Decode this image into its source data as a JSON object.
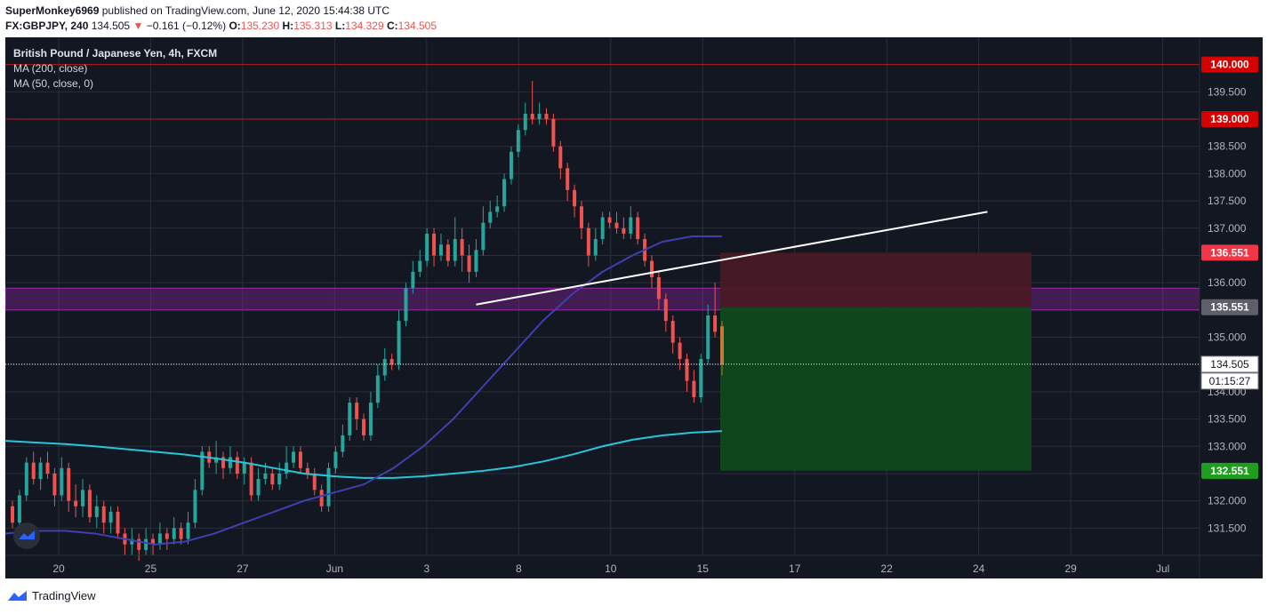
{
  "header": {
    "author": "SuperMonkey6969",
    "published": " published on TradingView.com, June 12, 2020 15:44:38 UTC",
    "symbol": "FX:GBPJPY, 240",
    "last": "134.505",
    "change_arrow": "▼",
    "change": "−0.161 (−0.12%)",
    "o_label": "O:",
    "o": "135.230",
    "h_label": "H:",
    "h": "135.313",
    "l_label": "L:",
    "l": "134.329",
    "c_label": "C:",
    "c": "134.505"
  },
  "legend": {
    "title": "British Pound / Japanese Yen, 4h, FXCM",
    "ma200": "MA (200, close)",
    "ma50": "MA (50, close, 0)"
  },
  "footer": {
    "brand": "TradingView"
  },
  "colors": {
    "background": "#131722",
    "grid": "#2a2e39",
    "up": "#26a69a",
    "down": "#ef5350",
    "ma200": "#26c6da",
    "ma50": "#3f3fae",
    "trendline": "#ffffff",
    "zone": "#9c27b0",
    "stop_zone": "#4a1a24",
    "target_zone": "#0e4a1a",
    "level_line": "#b71c1c"
  },
  "chart_data": {
    "type": "candlestick",
    "x_ticks": [
      "20",
      "25",
      "27",
      "Jun",
      "3",
      "8",
      "10",
      "15",
      "17",
      "22",
      "24",
      "29",
      "Jul"
    ],
    "y_ticks": [
      "131.500",
      "132.000",
      "132.500",
      "133.000",
      "133.500",
      "134.000",
      "134.500",
      "135.000",
      "135.500",
      "136.000",
      "136.500",
      "137.000",
      "137.500",
      "138.000",
      "138.500",
      "139.000",
      "139.500"
    ],
    "y_range": [
      131.0,
      140.5
    ],
    "levels": [
      {
        "label": "140.000",
        "value": 140.0,
        "color": "#d50000"
      },
      {
        "label": "139.000",
        "value": 139.0,
        "color": "#d50000"
      },
      {
        "label": "136.551",
        "value": 136.551,
        "color": "#f23645"
      },
      {
        "label": "135.551",
        "value": 135.551,
        "color": "#5d606b"
      },
      {
        "label": "132.551",
        "value": 132.551,
        "color": "#1e9e1e"
      }
    ],
    "current_price": "134.505",
    "countdown": "01:15:27",
    "candles": [
      [
        131.9,
        131.6,
        132.0,
        131.5
      ],
      [
        131.6,
        132.1,
        132.2,
        131.5
      ],
      [
        132.1,
        132.7,
        132.8,
        132.0
      ],
      [
        132.7,
        132.4,
        132.9,
        132.3
      ],
      [
        132.4,
        132.7,
        132.8,
        132.2
      ],
      [
        132.7,
        132.5,
        132.9,
        132.4
      ],
      [
        132.5,
        132.1,
        132.6,
        131.9
      ],
      [
        132.1,
        132.6,
        132.8,
        132.0
      ],
      [
        132.6,
        132.0,
        132.7,
        131.8
      ],
      [
        132.0,
        131.9,
        132.3,
        131.7
      ],
      [
        131.9,
        132.2,
        132.4,
        131.7
      ],
      [
        132.2,
        131.7,
        132.3,
        131.6
      ],
      [
        131.7,
        131.9,
        132.1,
        131.5
      ],
      [
        131.9,
        131.6,
        132.0,
        131.4
      ],
      [
        131.6,
        131.8,
        131.9,
        131.4
      ],
      [
        131.8,
        131.4,
        131.9,
        131.3
      ],
      [
        131.4,
        131.2,
        131.5,
        131.0
      ],
      [
        131.2,
        131.3,
        131.5,
        131.0
      ],
      [
        131.3,
        131.1,
        131.4,
        130.9
      ],
      [
        131.1,
        131.3,
        131.5,
        131.0
      ],
      [
        131.3,
        131.2,
        131.4,
        131.0
      ],
      [
        131.2,
        131.4,
        131.6,
        131.1
      ],
      [
        131.4,
        131.3,
        131.5,
        131.1
      ],
      [
        131.3,
        131.5,
        131.7,
        131.2
      ],
      [
        131.5,
        131.3,
        131.6,
        131.2
      ],
      [
        131.3,
        131.6,
        131.8,
        131.2
      ],
      [
        131.6,
        132.2,
        132.4,
        131.5
      ],
      [
        132.2,
        132.9,
        133.0,
        132.1
      ],
      [
        132.9,
        132.7,
        133.0,
        132.6
      ],
      [
        132.7,
        132.8,
        133.1,
        132.5
      ],
      [
        132.8,
        132.6,
        132.9,
        132.4
      ],
      [
        132.6,
        132.8,
        133.0,
        132.5
      ],
      [
        132.8,
        132.5,
        132.9,
        132.4
      ],
      [
        132.5,
        132.7,
        132.8,
        132.3
      ],
      [
        132.7,
        132.1,
        132.8,
        132.0
      ],
      [
        132.1,
        132.4,
        132.6,
        132.0
      ],
      [
        132.4,
        132.5,
        132.7,
        132.3
      ],
      [
        132.5,
        132.3,
        132.6,
        132.2
      ],
      [
        132.3,
        132.5,
        132.7,
        132.2
      ],
      [
        132.5,
        132.7,
        133.0,
        132.4
      ],
      [
        132.7,
        132.9,
        133.0,
        132.6
      ],
      [
        132.9,
        132.6,
        133.0,
        132.5
      ],
      [
        132.6,
        132.5,
        132.7,
        132.4
      ],
      [
        132.5,
        132.2,
        132.6,
        132.1
      ],
      [
        132.2,
        131.9,
        132.3,
        131.8
      ],
      [
        131.9,
        132.6,
        132.7,
        131.8
      ],
      [
        132.6,
        132.9,
        133.0,
        132.5
      ],
      [
        132.9,
        133.2,
        133.4,
        132.8
      ],
      [
        133.2,
        133.8,
        133.9,
        133.1
      ],
      [
        133.8,
        133.5,
        133.9,
        133.3
      ],
      [
        133.5,
        133.2,
        133.6,
        133.1
      ],
      [
        133.2,
        133.8,
        134.0,
        133.1
      ],
      [
        133.8,
        134.3,
        134.5,
        133.7
      ],
      [
        134.3,
        134.6,
        134.8,
        134.2
      ],
      [
        134.6,
        134.5,
        134.7,
        134.4
      ],
      [
        134.5,
        135.3,
        135.5,
        134.4
      ],
      [
        135.3,
        135.9,
        136.0,
        135.2
      ],
      [
        135.9,
        136.2,
        136.4,
        135.8
      ],
      [
        136.2,
        136.4,
        136.6,
        136.1
      ],
      [
        136.4,
        136.9,
        137.0,
        136.3
      ],
      [
        136.9,
        136.5,
        137.0,
        136.3
      ],
      [
        136.5,
        136.7,
        136.9,
        136.4
      ],
      [
        136.7,
        136.4,
        136.8,
        136.3
      ],
      [
        136.4,
        136.8,
        137.2,
        136.3
      ],
      [
        136.8,
        136.5,
        137.0,
        136.2
      ],
      [
        136.5,
        136.2,
        136.7,
        136.0
      ],
      [
        136.2,
        136.6,
        136.8,
        136.1
      ],
      [
        136.6,
        137.1,
        137.4,
        136.5
      ],
      [
        137.1,
        137.3,
        137.5,
        137.0
      ],
      [
        137.3,
        137.4,
        137.6,
        137.2
      ],
      [
        137.4,
        137.9,
        138.0,
        137.3
      ],
      [
        137.9,
        138.4,
        138.5,
        137.8
      ],
      [
        138.4,
        138.8,
        138.9,
        138.3
      ],
      [
        138.8,
        139.1,
        139.3,
        138.7
      ],
      [
        139.1,
        139.0,
        139.7,
        138.9
      ],
      [
        139.0,
        139.1,
        139.3,
        138.9
      ],
      [
        139.1,
        139.0,
        139.2,
        138.9
      ],
      [
        139.0,
        138.5,
        139.1,
        138.4
      ],
      [
        138.5,
        138.1,
        138.6,
        137.9
      ],
      [
        138.1,
        137.7,
        138.2,
        137.5
      ],
      [
        137.7,
        137.4,
        137.8,
        137.2
      ],
      [
        137.4,
        137.0,
        137.5,
        136.8
      ],
      [
        137.0,
        136.5,
        137.1,
        136.3
      ],
      [
        136.5,
        136.8,
        137.0,
        136.4
      ],
      [
        136.8,
        137.2,
        137.3,
        136.7
      ],
      [
        137.2,
        137.1,
        137.3,
        137.0
      ],
      [
        137.1,
        137.0,
        137.3,
        136.9
      ],
      [
        137.0,
        136.9,
        137.2,
        136.8
      ],
      [
        136.9,
        137.2,
        137.4,
        136.8
      ],
      [
        137.2,
        136.8,
        137.3,
        136.7
      ],
      [
        136.8,
        136.4,
        136.9,
        136.3
      ],
      [
        136.4,
        136.1,
        136.5,
        135.9
      ],
      [
        136.1,
        135.7,
        136.2,
        135.5
      ],
      [
        135.7,
        135.3,
        135.8,
        135.1
      ],
      [
        135.3,
        134.9,
        135.4,
        134.7
      ],
      [
        134.9,
        134.6,
        135.0,
        134.4
      ],
      [
        134.6,
        134.2,
        134.7,
        134.0
      ],
      [
        134.2,
        133.9,
        134.4,
        133.8
      ],
      [
        133.9,
        134.6,
        134.7,
        133.8
      ],
      [
        134.6,
        135.4,
        135.6,
        134.5
      ],
      [
        135.4,
        135.1,
        136.0,
        135.0
      ],
      [
        135.2,
        134.5,
        135.3,
        134.3
      ]
    ],
    "ma200_values": [
      133.1,
      133.07,
      133.04,
      133.0,
      132.95,
      132.9,
      132.85,
      132.78,
      132.7,
      132.6,
      132.5,
      132.45,
      132.42,
      132.42,
      132.45,
      132.5,
      132.55,
      132.62,
      132.72,
      132.85,
      133.0,
      133.12,
      133.2,
      133.25,
      133.28
    ],
    "ma50_values": [
      131.4,
      131.45,
      131.45,
      131.4,
      131.3,
      131.2,
      131.25,
      131.4,
      131.6,
      131.8,
      132.0,
      132.15,
      132.3,
      132.6,
      133.0,
      133.5,
      134.1,
      134.7,
      135.3,
      135.8,
      136.2,
      136.5,
      136.75,
      136.85,
      136.85
    ],
    "trendline": {
      "start": [
        67,
        135.6
      ],
      "end": [
        173,
        137.3
      ]
    },
    "zone": {
      "low": 135.5,
      "high": 135.9
    },
    "position": {
      "entry": 135.551,
      "stop": 136.551,
      "target": 132.551
    }
  }
}
